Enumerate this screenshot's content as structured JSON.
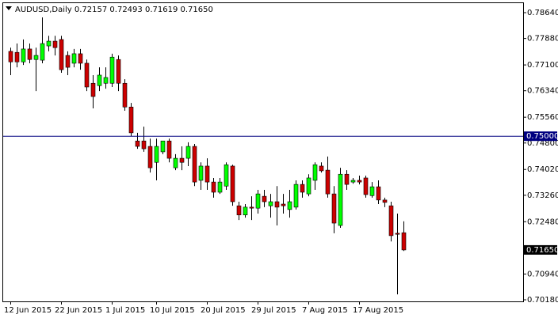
{
  "chart_data": {
    "type": "candlestick",
    "title": "AUDUSD,Daily  0.72157 0.72493 0.71619 0.71650",
    "categories": [
      "12 Jun 2015",
      null,
      null,
      null,
      null,
      null,
      null,
      null,
      "22 Jun 2015",
      null,
      null,
      null,
      null,
      null,
      null,
      null,
      "1 Jul 2015",
      null,
      null,
      null,
      null,
      null,
      null,
      "10 Jul 2015",
      null,
      null,
      null,
      null,
      null,
      null,
      null,
      "20 Jul 2015",
      null,
      null,
      null,
      null,
      null,
      null,
      null,
      "29 Jul 2015",
      null,
      null,
      null,
      null,
      null,
      null,
      null,
      "7 Aug 2015",
      null,
      null,
      null,
      null,
      null,
      null,
      null,
      "17 Aug 2015",
      null,
      null,
      null,
      null,
      null,
      null,
      null
    ],
    "open": [
      0.775,
      0.7747,
      0.7719,
      0.7757,
      0.7726,
      0.7724,
      0.7766,
      0.778,
      0.7785,
      0.7738,
      0.7715,
      0.7743,
      0.7715,
      0.7656,
      0.7649,
      0.7656,
      0.7656,
      0.7726,
      0.7656,
      0.7586,
      0.7486,
      0.7486,
      0.747,
      0.7423,
      0.7454,
      0.7486,
      0.7407,
      0.7435,
      0.7435,
      0.747,
      0.737,
      0.7412,
      0.7365,
      0.7335,
      0.7353,
      0.7412,
      0.7295,
      0.7268,
      0.7291,
      0.7288,
      0.7323,
      0.7295,
      0.7307,
      0.73,
      0.7284,
      0.7291,
      0.7358,
      0.733,
      0.737,
      0.7412,
      0.74,
      0.733,
      0.7237,
      0.7388,
      0.7365,
      0.737,
      0.7377,
      0.7325,
      0.7351,
      0.7312,
      0.7295,
      0.7214,
      0.72157
    ],
    "high": [
      0.7761,
      0.7773,
      0.7785,
      0.7773,
      0.7761,
      0.785,
      0.7796,
      0.7796,
      0.7796,
      0.775,
      0.7757,
      0.7757,
      0.7726,
      0.768,
      0.7703,
      0.7703,
      0.7743,
      0.7738,
      0.7668,
      0.7598,
      0.751,
      0.7528,
      0.7493,
      0.7493,
      0.7486,
      0.7493,
      0.7447,
      0.747,
      0.7482,
      0.7477,
      0.7423,
      0.7435,
      0.7377,
      0.7377,
      0.7423,
      0.7416,
      0.7307,
      0.73,
      0.7323,
      0.7342,
      0.7342,
      0.733,
      0.7353,
      0.733,
      0.7342,
      0.737,
      0.737,
      0.7388,
      0.7423,
      0.7423,
      0.744,
      0.7353,
      0.7407,
      0.74,
      0.7377,
      0.7384,
      0.7384,
      0.7365,
      0.737,
      0.7319,
      0.7307,
      0.7272,
      0.72493
    ],
    "low": [
      0.768,
      0.7703,
      0.771,
      0.7715,
      0.7633,
      0.7715,
      0.775,
      0.7738,
      0.7687,
      0.768,
      0.7703,
      0.7696,
      0.7633,
      0.7582,
      0.7633,
      0.764,
      0.7645,
      0.7633,
      0.7575,
      0.75,
      0.7463,
      0.7454,
      0.7393,
      0.737,
      0.7447,
      0.7423,
      0.74,
      0.74,
      0.7412,
      0.7353,
      0.7342,
      0.7342,
      0.7319,
      0.733,
      0.7342,
      0.7295,
      0.7253,
      0.726,
      0.7253,
      0.7272,
      0.7291,
      0.726,
      0.7237,
      0.7272,
      0.726,
      0.7284,
      0.7319,
      0.7323,
      0.7342,
      0.7393,
      0.7319,
      0.7214,
      0.723,
      0.7342,
      0.736,
      0.7358,
      0.7319,
      0.7319,
      0.73,
      0.7291,
      0.719,
      0.7034,
      0.71619
    ],
    "close": [
      0.7719,
      0.7719,
      0.7757,
      0.7726,
      0.7738,
      0.7773,
      0.778,
      0.7761,
      0.7696,
      0.7703,
      0.7743,
      0.7715,
      0.7645,
      0.7617,
      0.768,
      0.7673,
      0.7733,
      0.7656,
      0.7586,
      0.751,
      0.747,
      0.7463,
      0.7407,
      0.747,
      0.7486,
      0.7435,
      0.7435,
      0.7423,
      0.747,
      0.7365,
      0.7412,
      0.7365,
      0.7335,
      0.7365,
      0.7416,
      0.7307,
      0.7268,
      0.7291,
      0.7288,
      0.733,
      0.7307,
      0.7307,
      0.7291,
      0.7295,
      0.7307,
      0.7358,
      0.7335,
      0.7377,
      0.7416,
      0.7398,
      0.733,
      0.7244,
      0.7388,
      0.7358,
      0.737,
      0.7365,
      0.7328,
      0.7351,
      0.7312,
      0.7305,
      0.7207,
      0.7211,
      0.7165
    ],
    "up_color": "#00ff00",
    "down_color": "#cc0000",
    "ylim": [
      0.7011,
      0.7892
    ],
    "yticks": [
      {
        "value": 0.7864,
        "label": "0.78640"
      },
      {
        "value": 0.7788,
        "label": "0.77880"
      },
      {
        "value": 0.771,
        "label": "0.77100"
      },
      {
        "value": 0.7634,
        "label": "0.76340"
      },
      {
        "value": 0.7556,
        "label": "0.75560"
      },
      {
        "value": 0.748,
        "label": "0.74800"
      },
      {
        "value": 0.7402,
        "label": "0.74020"
      },
      {
        "value": 0.7326,
        "label": "0.73260"
      },
      {
        "value": 0.7248,
        "label": "0.72480"
      },
      {
        "value": 0.7094,
        "label": "0.70940"
      },
      {
        "value": 0.7018,
        "label": "0.70180"
      }
    ],
    "level_line": {
      "value": 0.75,
      "label": "0.75000",
      "color": "#000080"
    },
    "bid_line": {
      "value": 0.7165,
      "label": "0.71650"
    }
  }
}
